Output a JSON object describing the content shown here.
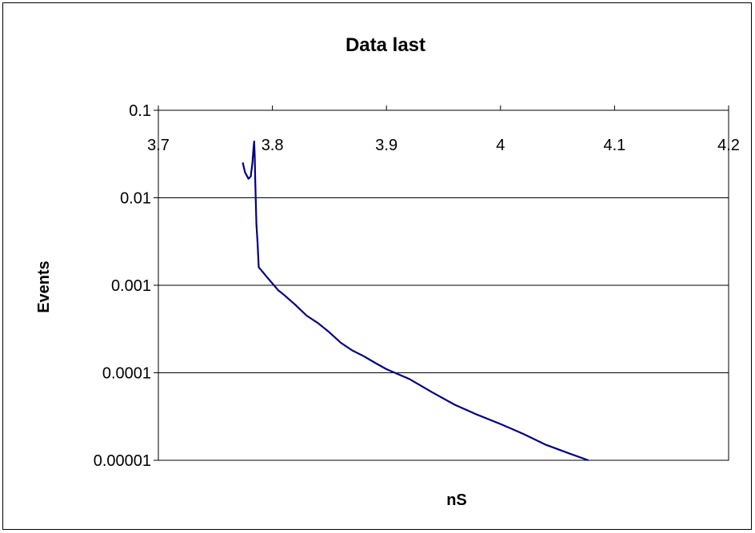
{
  "chart_data": {
    "type": "line",
    "title": "Data last",
    "xlabel": "nS",
    "ylabel": "Events",
    "xlim": [
      3.7,
      4.2
    ],
    "ylim": [
      1e-05,
      0.1
    ],
    "y_scale": "log",
    "x_axis_position": "top",
    "x_ticks": [
      3.7,
      3.8,
      3.9,
      4,
      4.1,
      4.2
    ],
    "x_tick_labels": [
      "3.7",
      "3.8",
      "3.9",
      "4",
      "4.1",
      "4.2"
    ],
    "y_ticks": [
      0.1,
      0.01,
      0.001,
      0.0001,
      1e-05
    ],
    "y_tick_labels": [
      "0.1",
      "0.01",
      "0.001",
      "0.0001",
      "0.00001"
    ],
    "grid": "horizontal",
    "legend": "none",
    "colors": {
      "line": "#000080",
      "grid": "#000000",
      "background": "#ffffff"
    },
    "series": [
      {
        "x": [
          3.774,
          3.776,
          3.779,
          3.781,
          3.7825,
          3.7835,
          3.784,
          3.7845,
          3.785,
          3.786,
          3.787,
          3.788,
          3.79,
          3.795,
          3.8,
          3.805,
          3.81,
          3.82,
          3.83,
          3.84,
          3.85,
          3.86,
          3.87,
          3.88,
          3.89,
          3.9,
          3.92,
          3.94,
          3.96,
          3.98,
          4.0,
          4.02,
          4.04,
          4.06,
          4.077
        ],
        "y": [
          0.0253,
          0.0195,
          0.0165,
          0.0175,
          0.025,
          0.038,
          0.044,
          0.03,
          0.015,
          0.005,
          0.003,
          0.0016,
          0.0015,
          0.00125,
          0.00105,
          0.00088,
          0.00078,
          0.0006,
          0.00045,
          0.00037,
          0.00029,
          0.00022,
          0.00018,
          0.000155,
          0.00013,
          0.00011,
          8.5e-05,
          6e-05,
          4.3e-05,
          3.3e-05,
          2.6e-05,
          2e-05,
          1.5e-05,
          1.2e-05,
          1e-05
        ]
      }
    ]
  }
}
